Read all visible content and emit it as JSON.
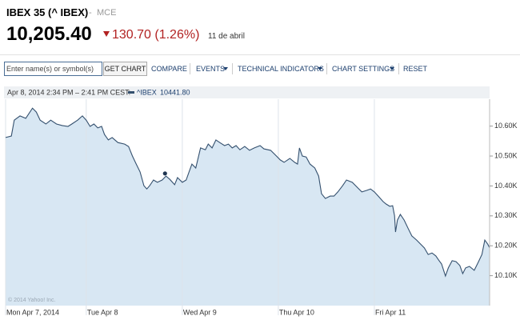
{
  "header": {
    "title": "IBEX 35 (^ IBEX)",
    "separator": "-",
    "exchange": "MCE",
    "price": "10,205.40",
    "change": "130.70 (1.26%)",
    "date": "11 de abril"
  },
  "toolbar": {
    "input_placeholder": "Enter name(s) or symbol(s)",
    "button": "GET CHART",
    "items": [
      "COMPARE",
      "EVENTS",
      "TECHNICAL INDICATORS",
      "CHART SETTINGS",
      "RESET"
    ]
  },
  "chart_data": {
    "type": "area",
    "info": "Apr 8, 2014 2:34 PM – 2:41 PM CEST:",
    "watermark": "© 2014 Yahoo! Inc.",
    "hover": {
      "x": 1.82,
      "value": 10441.8,
      "value_label": "10441.80"
    },
    "x": [
      0.16,
      0.22,
      0.25,
      0.31,
      0.37,
      0.44,
      0.48,
      0.52,
      0.58,
      0.63,
      0.69,
      0.75,
      0.81,
      0.85,
      0.91,
      0.96,
      1.0,
      1.04,
      1.08,
      1.12,
      1.16,
      1.19,
      1.23,
      1.27,
      1.33,
      1.4,
      1.44,
      1.48,
      1.52,
      1.56,
      1.6,
      1.63,
      1.66,
      1.7,
      1.74,
      1.79,
      1.83,
      1.87,
      1.92,
      1.95,
      2.0,
      2.04,
      2.07,
      2.1,
      2.14,
      2.19,
      2.24,
      2.27,
      2.31,
      2.35,
      2.39,
      2.44,
      2.48,
      2.52,
      2.56,
      2.6,
      2.65,
      2.7,
      2.75,
      2.81,
      2.85,
      2.92,
      2.98,
      3.02,
      3.06,
      3.12,
      3.17,
      3.2,
      3.22,
      3.25,
      3.29,
      3.33,
      3.38,
      3.42,
      3.45,
      3.49,
      3.54,
      3.58,
      3.62,
      3.67,
      3.71,
      3.77,
      3.83,
      3.87,
      3.92,
      3.96,
      4.0,
      4.04,
      4.09,
      4.12,
      4.16,
      4.19,
      4.21,
      4.22,
      4.24,
      4.27,
      4.31,
      4.35,
      4.39,
      4.44,
      4.48,
      4.52,
      4.56,
      4.6,
      4.64,
      4.67,
      4.7,
      4.74,
      4.77,
      4.81,
      4.85,
      4.89,
      4.92,
      4.95,
      4.99,
      5.04,
      5.08,
      5.12,
      5.15,
      5.18,
      5.2
    ],
    "series": [
      {
        "name": "^IBEX",
        "color": "#34506e",
        "fill": "#d8e7f3",
        "values": [
          10562,
          10567,
          10620,
          10634,
          10626,
          10660,
          10647,
          10620,
          10607,
          10620,
          10607,
          10602,
          10599,
          10607,
          10620,
          10634,
          10620,
          10599,
          10607,
          10594,
          10599,
          10572,
          10554,
          10562,
          10545,
          10540,
          10532,
          10500,
          10473,
          10447,
          10401,
          10390,
          10401,
          10420,
          10412,
          10420,
          10433,
          10422,
          10404,
          10428,
          10412,
          10420,
          10447,
          10473,
          10460,
          10527,
          10521,
          10540,
          10527,
          10554,
          10545,
          10535,
          10540,
          10527,
          10535,
          10521,
          10532,
          10519,
          10527,
          10535,
          10524,
          10519,
          10500,
          10487,
          10479,
          10492,
          10479,
          10473,
          10527,
          10500,
          10497,
          10473,
          10460,
          10433,
          10374,
          10358,
          10366,
          10366,
          10380,
          10401,
          10420,
          10412,
          10393,
          10380,
          10385,
          10390,
          10380,
          10366,
          10348,
          10340,
          10332,
          10334,
          10300,
          10246,
          10286,
          10305,
          10286,
          10259,
          10233,
          10219,
          10206,
          10193,
          10171,
          10176,
          10166,
          10152,
          10139,
          10099,
          10126,
          10150,
          10147,
          10134,
          10107,
          10126,
          10131,
          10118,
          10144,
          10171,
          10219,
          10206,
          10193
        ]
      }
    ],
    "xlim": [
      0.16,
      5.2
    ],
    "xticks": [
      {
        "value": 0.16,
        "label": "Mon Apr 7, 2014"
      },
      {
        "value": 1,
        "label": "Tue Apr 8"
      },
      {
        "value": 2,
        "label": "Wed Apr 9"
      },
      {
        "value": 3,
        "label": "Thu Apr 10"
      },
      {
        "value": 4,
        "label": "Fri Apr 11"
      }
    ],
    "ylim": [
      10000,
      10690
    ],
    "yticks": [
      {
        "value": 10100,
        "label": "10.10K"
      },
      {
        "value": 10200,
        "label": "10.20K"
      },
      {
        "value": 10300,
        "label": "10.30K"
      },
      {
        "value": 10400,
        "label": "10.40K"
      },
      {
        "value": 10500,
        "label": "10.50K"
      },
      {
        "value": 10600,
        "label": "10.60K"
      }
    ],
    "grid": true
  }
}
